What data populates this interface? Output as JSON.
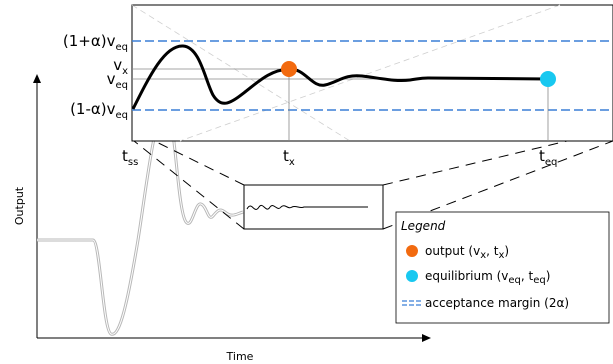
{
  "axes": {
    "x_label": "Time",
    "y_label": "Output"
  },
  "levels": {
    "upper": {
      "main": "(1+α)v",
      "sub": "eq"
    },
    "vx": {
      "main": "v",
      "sub": "x"
    },
    "veq": {
      "main": "v",
      "sub": "eq"
    },
    "lower": {
      "main": "(1-α)v",
      "sub": "eq"
    }
  },
  "times": {
    "tss": {
      "main": "t",
      "sub": "ss"
    },
    "tx": {
      "main": "t",
      "sub": "x"
    },
    "teq": {
      "main": "t",
      "sub": "eq"
    }
  },
  "legend": {
    "title": "Legend",
    "items": [
      {
        "marker": "orange-circle",
        "text": "output (v",
        "sub1": "x",
        "mid": ", t",
        "sub2": "x",
        "end": ")"
      },
      {
        "marker": "cyan-circle",
        "text": "equilibrium (v",
        "sub1": "eq",
        "mid": ", t",
        "sub2": "eq",
        "end": ")"
      },
      {
        "marker": "blue-dashed-line",
        "text": "acceptance margin (2α)"
      }
    ]
  },
  "colors": {
    "output_marker": "#f26a0f",
    "equilibrium_marker": "#18c8f0",
    "margin_line": "#3a7fd6",
    "curve": "#000000",
    "outer_curve": "#9a9a9a"
  }
}
